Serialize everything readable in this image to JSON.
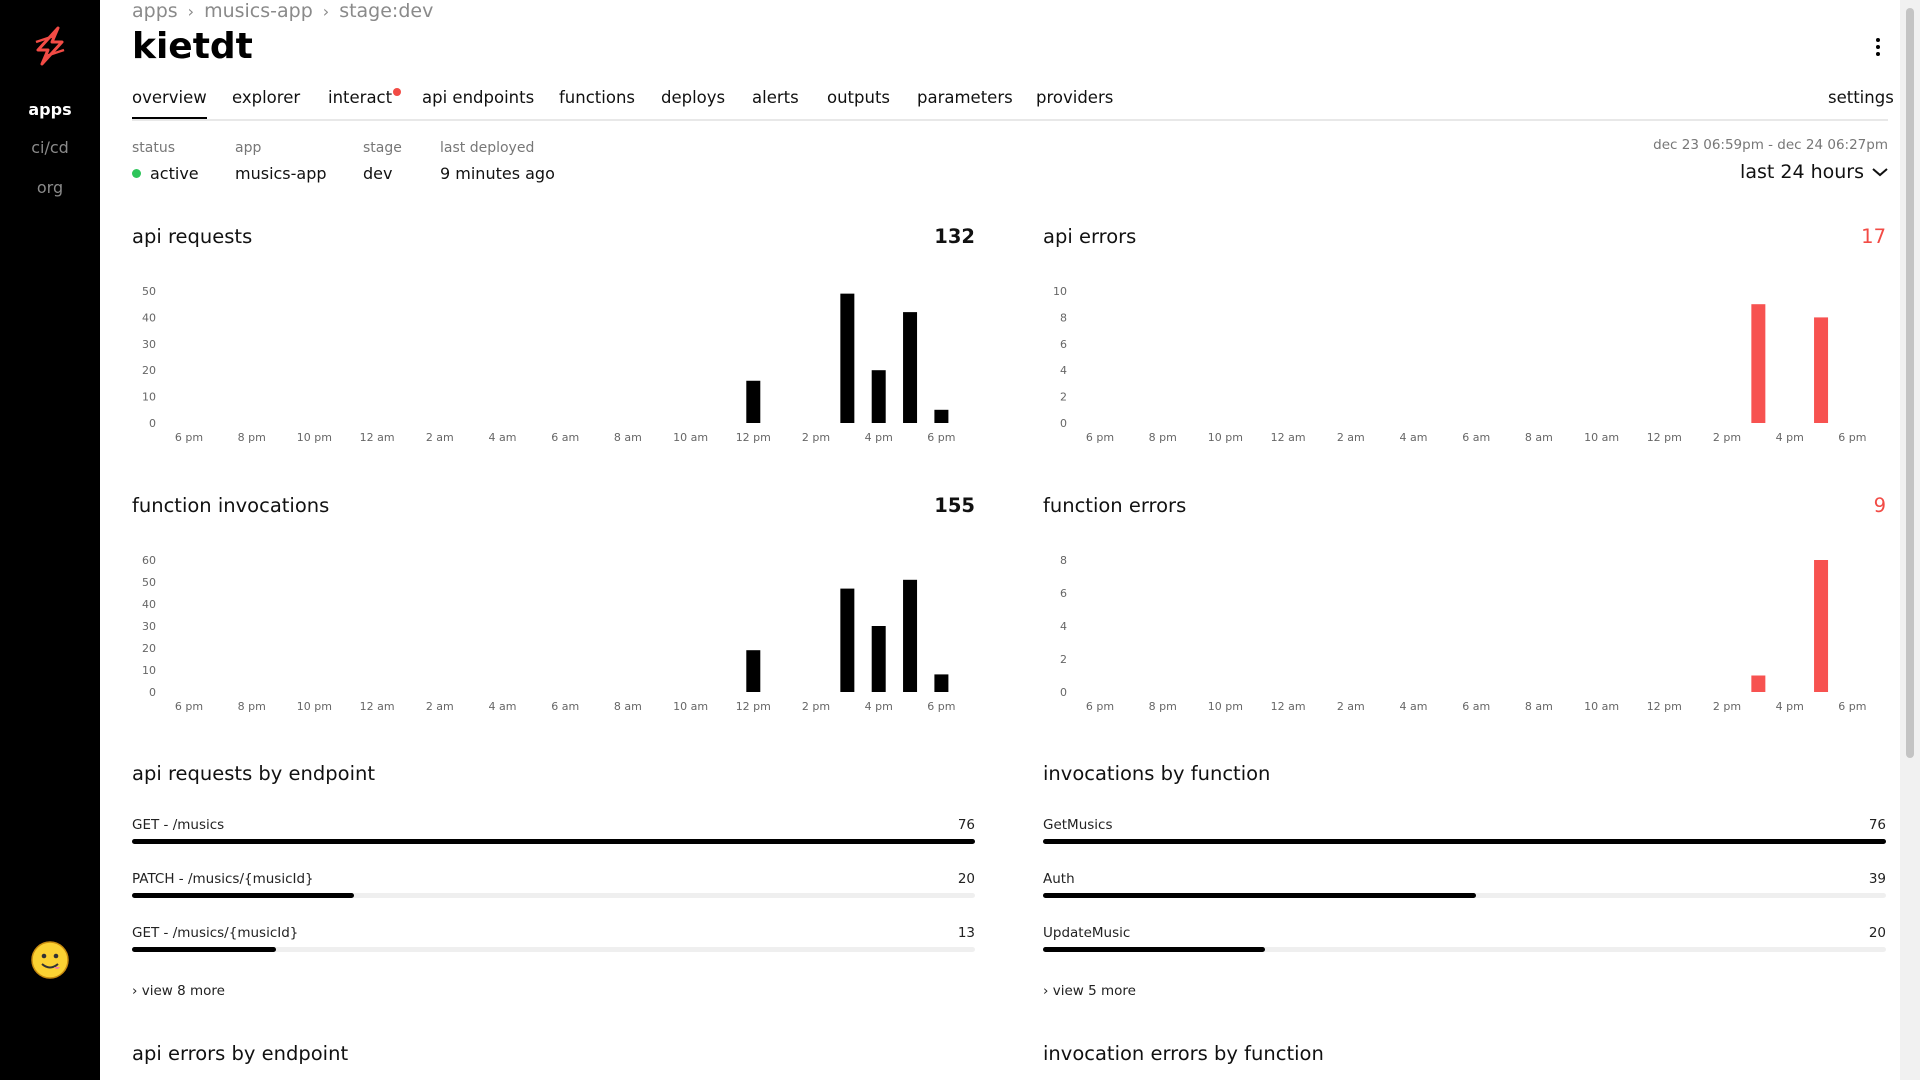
{
  "sidebar": {
    "items": [
      {
        "label": "apps",
        "active": true
      },
      {
        "label": "ci/cd",
        "active": false
      },
      {
        "label": "org",
        "active": false
      }
    ],
    "logo_icon": "lightning-bolt-icon",
    "avatar_icon": "smiley-avatar-icon"
  },
  "header": {
    "breadcrumb": [
      "apps",
      "musics-app",
      "stage:dev"
    ],
    "title": "kietdt"
  },
  "tabs": [
    {
      "label": "overview",
      "active": true
    },
    {
      "label": "explorer"
    },
    {
      "label": "interact",
      "notification": true
    },
    {
      "label": "api endpoints"
    },
    {
      "label": "functions"
    },
    {
      "label": "deploys"
    },
    {
      "label": "alerts"
    },
    {
      "label": "outputs"
    },
    {
      "label": "parameters"
    },
    {
      "label": "providers"
    },
    {
      "label": "settings"
    }
  ],
  "meta": {
    "status_label": "status",
    "status_value": "active",
    "app_label": "app",
    "app_value": "musics-app",
    "stage_label": "stage",
    "stage_value": "dev",
    "deployed_label": "last deployed",
    "deployed_value": "9 minutes ago"
  },
  "time_range": {
    "range_text": "dec 23 06:59pm - dec 24 06:27pm",
    "selected": "last 24 hours"
  },
  "colors": {
    "bar": "#000000",
    "error_bar": "#f75250",
    "active_dot": "#2ec55a",
    "error_text": "#f24b45"
  },
  "panels": {
    "api_requests": {
      "title": "api requests",
      "total": "132"
    },
    "api_errors": {
      "title": "api errors",
      "total": "17"
    },
    "function_invocations": {
      "title": "function invocations",
      "total": "155"
    },
    "function_errors": {
      "title": "function errors",
      "total": "9"
    }
  },
  "chart_data": [
    {
      "id": "api_requests",
      "type": "bar",
      "color": "#000000",
      "ylim": [
        0,
        50
      ],
      "yticks": [
        0,
        10,
        20,
        30,
        40,
        50
      ],
      "xticks": [
        "6 pm",
        "8 pm",
        "10 pm",
        "12 am",
        "2 am",
        "4 am",
        "6 am",
        "8 am",
        "10 am",
        "12 pm",
        "2 pm",
        "4 pm",
        "6 pm"
      ],
      "x": [
        18,
        21,
        22,
        23,
        24
      ],
      "values": [
        16,
        49,
        20,
        42,
        5
      ]
    },
    {
      "id": "api_errors",
      "type": "bar",
      "color": "#f75250",
      "ylim": [
        0,
        10
      ],
      "yticks": [
        0,
        2,
        4,
        6,
        8,
        10
      ],
      "xticks": [
        "6 pm",
        "8 pm",
        "10 pm",
        "12 am",
        "2 am",
        "4 am",
        "6 am",
        "8 am",
        "10 am",
        "12 pm",
        "2 pm",
        "4 pm",
        "6 pm"
      ],
      "x": [
        21,
        23
      ],
      "values": [
        9,
        8
      ]
    },
    {
      "id": "function_invocations",
      "type": "bar",
      "color": "#000000",
      "ylim": [
        0,
        60
      ],
      "yticks": [
        0,
        10,
        20,
        30,
        40,
        50,
        60
      ],
      "xticks": [
        "6 pm",
        "8 pm",
        "10 pm",
        "12 am",
        "2 am",
        "4 am",
        "6 am",
        "8 am",
        "10 am",
        "12 pm",
        "2 pm",
        "4 pm",
        "6 pm"
      ],
      "x": [
        18,
        21,
        22,
        23,
        24
      ],
      "values": [
        19,
        47,
        30,
        51,
        8
      ]
    },
    {
      "id": "function_errors",
      "type": "bar",
      "color": "#f75250",
      "ylim": [
        0,
        8
      ],
      "yticks": [
        0,
        2,
        4,
        6,
        8
      ],
      "xticks": [
        "6 pm",
        "8 pm",
        "10 pm",
        "12 am",
        "2 am",
        "4 am",
        "6 am",
        "8 am",
        "10 am",
        "12 pm",
        "2 pm",
        "4 pm",
        "6 pm"
      ],
      "x": [
        21,
        23
      ],
      "values": [
        1,
        8
      ]
    }
  ],
  "endpoints": {
    "title": "api requests by endpoint",
    "max": 76,
    "rows": [
      {
        "label": "GET - /musics",
        "value": 76
      },
      {
        "label": "PATCH - /musics/{musicId}",
        "value": 20
      },
      {
        "label": "GET - /musics/{musicId}",
        "value": 13
      }
    ],
    "view_more": "view 8 more"
  },
  "functions_list": {
    "title": "invocations by function",
    "max": 76,
    "rows": [
      {
        "label": "GetMusics",
        "value": 76
      },
      {
        "label": "Auth",
        "value": 39
      },
      {
        "label": "UpdateMusic",
        "value": 20
      }
    ],
    "view_more": "view 5 more"
  },
  "bottom": {
    "left_title": "api errors by endpoint",
    "right_title": "invocation errors by function"
  }
}
